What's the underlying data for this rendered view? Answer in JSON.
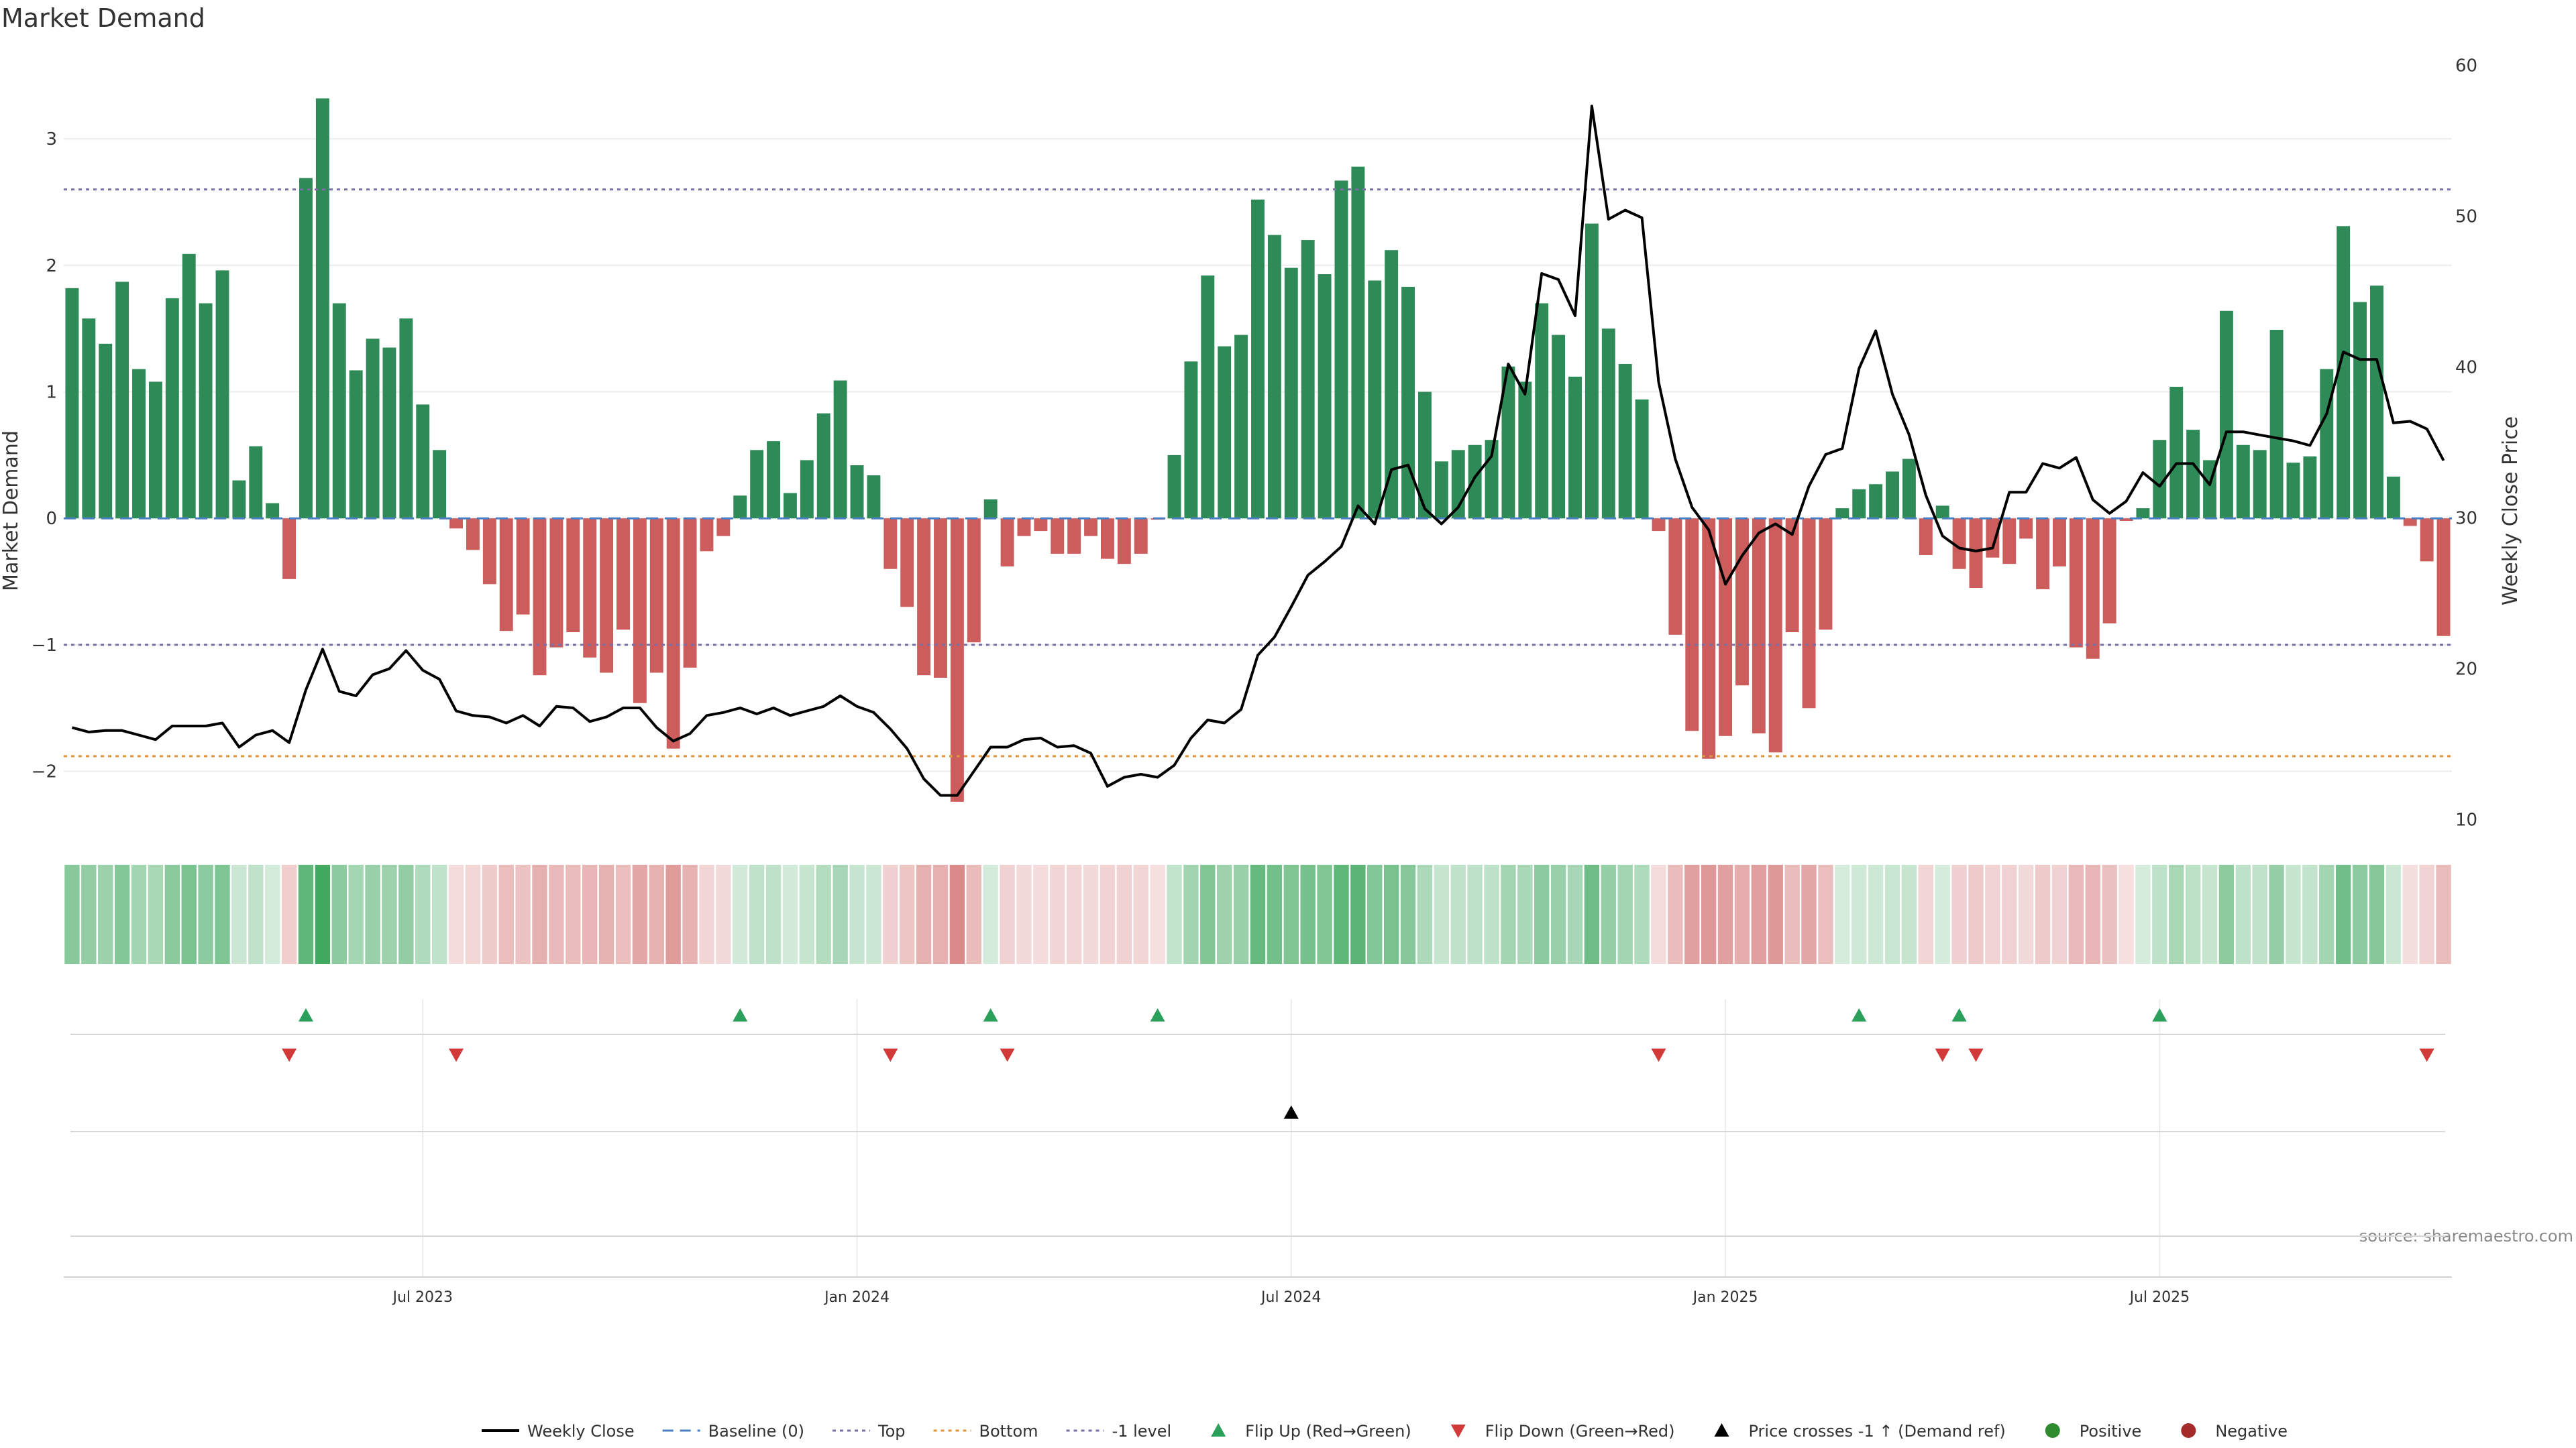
{
  "chart_data": {
    "type": "bar",
    "title": "Market Demand",
    "ylabel": "Market Demand",
    "ylabel_right": "Weekly Close Price",
    "ylim": [
      -2.5,
      3.7
    ],
    "ylim_right": [
      9,
      61
    ],
    "yticks": [
      -2,
      -1,
      0,
      1,
      2,
      3
    ],
    "yticks_labels": [
      "−2",
      "−1",
      "0",
      "1",
      "2",
      "3"
    ],
    "yticks_right": [
      10,
      20,
      30,
      40,
      50,
      60
    ],
    "reference_lines": {
      "top": 2.6,
      "minus_one": -1.0,
      "bottom": -1.88,
      "baseline": 0
    },
    "x_ticks": [
      {
        "label": "Jul 2023",
        "index": 21
      },
      {
        "label": "Jan 2024",
        "index": 47
      },
      {
        "label": "Jul 2024",
        "index": 73
      },
      {
        "label": "Jan 2025",
        "index": 99
      },
      {
        "label": "Jul 2025",
        "index": 125
      }
    ],
    "demand": [
      1.82,
      1.58,
      1.38,
      1.87,
      1.18,
      1.08,
      1.74,
      2.09,
      1.7,
      1.96,
      0.3,
      0.57,
      0.12,
      -0.48,
      2.69,
      3.32,
      1.7,
      1.17,
      1.42,
      1.35,
      1.58,
      0.9,
      0.54,
      -0.08,
      -0.25,
      -0.52,
      -0.89,
      -0.76,
      -1.24,
      -1.02,
      -0.9,
      -1.1,
      -1.22,
      -0.88,
      -1.46,
      -1.22,
      -1.82,
      -1.18,
      -0.26,
      -0.14,
      0.18,
      0.54,
      0.61,
      0.2,
      0.46,
      0.83,
      1.09,
      0.42,
      0.34,
      -0.4,
      -0.7,
      -1.24,
      -1.26,
      -2.24,
      -0.98,
      0.15,
      -0.38,
      -0.14,
      -0.1,
      -0.28,
      -0.28,
      -0.14,
      -0.32,
      -0.36,
      -0.28,
      -0.01,
      0.5,
      1.24,
      1.92,
      1.36,
      1.45,
      2.52,
      2.24,
      1.98,
      2.2,
      1.93,
      2.67,
      2.78,
      1.88,
      2.12,
      1.83,
      1.0,
      0.45,
      0.54,
      0.58,
      0.62,
      1.2,
      1.08,
      1.7,
      1.45,
      1.12,
      2.33,
      1.5,
      1.22,
      0.94,
      -0.1,
      -0.92,
      -1.68,
      -1.9,
      -1.72,
      -1.32,
      -1.7,
      -1.85,
      -0.9,
      -1.5,
      -0.88,
      0.08,
      0.23,
      0.27,
      0.37,
      0.47,
      -0.29,
      0.1,
      -0.4,
      -0.55,
      -0.31,
      -0.36,
      -0.16,
      -0.56,
      -0.38,
      -1.02,
      -1.11,
      -0.83,
      -0.02,
      0.08,
      0.62,
      1.04,
      0.7,
      0.46,
      1.64,
      0.58,
      0.54,
      1.49,
      0.44,
      0.49,
      1.18,
      2.31,
      1.71,
      1.84,
      0.33,
      -0.06,
      -0.34,
      -0.93
    ],
    "weekly_close": [
      16.1,
      15.8,
      15.9,
      15.9,
      15.6,
      15.3,
      16.2,
      16.2,
      16.2,
      16.4,
      14.8,
      15.6,
      15.9,
      15.1,
      18.6,
      21.3,
      18.5,
      18.2,
      19.6,
      20.0,
      21.2,
      19.9,
      19.3,
      17.2,
      16.9,
      16.8,
      16.4,
      16.9,
      16.2,
      17.5,
      17.4,
      16.5,
      16.8,
      17.4,
      17.4,
      16.1,
      15.2,
      15.7,
      16.9,
      17.1,
      17.4,
      17.0,
      17.4,
      16.9,
      17.2,
      17.5,
      18.2,
      17.5,
      17.1,
      16.0,
      14.7,
      12.7,
      11.6,
      11.6,
      13.2,
      14.8,
      14.8,
      15.3,
      15.4,
      14.8,
      14.9,
      14.4,
      12.2,
      12.8,
      13.0,
      12.8,
      13.6,
      15.4,
      16.6,
      16.4,
      17.3,
      20.9,
      22.1,
      24.1,
      26.2,
      27.1,
      28.1,
      30.8,
      29.6,
      33.2,
      33.5,
      30.6,
      29.6,
      30.7,
      32.7,
      34.1,
      40.2,
      38.2,
      46.2,
      45.8,
      43.4,
      57.3,
      49.8,
      50.4,
      49.9,
      39.0,
      33.9,
      30.7,
      29.2,
      25.6,
      27.5,
      29.0,
      29.6,
      28.9,
      32.1,
      34.2,
      34.6,
      39.9,
      42.4,
      38.2,
      35.5,
      31.5,
      28.8,
      28.0,
      27.8,
      28.0,
      31.7,
      31.7,
      33.6,
      33.3,
      34.0,
      31.2,
      30.3,
      31.1,
      33.0,
      32.1,
      33.6,
      33.6,
      32.2,
      35.7,
      35.7,
      35.5,
      35.3,
      35.1,
      34.8,
      36.9,
      41.0,
      40.5,
      40.5,
      36.3,
      36.4,
      35.9,
      33.8
    ],
    "flip_up_indices": [
      14,
      40,
      55,
      65,
      107,
      113,
      125
    ],
    "flip_down_indices": [
      13,
      23,
      49,
      56,
      95,
      112,
      114,
      141
    ],
    "price_cross_indices": [
      73
    ],
    "legend": [
      {
        "label": "Weekly Close",
        "symbol": "line"
      },
      {
        "label": "Baseline (0)",
        "symbol": "dash"
      },
      {
        "label": "Top",
        "symbol": "dot"
      },
      {
        "label": "Bottom",
        "symbol": "dot-orange"
      },
      {
        "label": "-1 level",
        "symbol": "dot"
      },
      {
        "label": "Flip Up (Red→Green)",
        "symbol": "tri-up"
      },
      {
        "label": "Flip Down (Green→Red)",
        "symbol": "tri-down"
      },
      {
        "label": "Price crosses -1 ↑ (Demand ref)",
        "symbol": "tri-black"
      },
      {
        "label": "Positive",
        "symbol": "circle-green"
      },
      {
        "label": "Negative",
        "symbol": "circle-red"
      }
    ]
  },
  "source_note": "source: sharemaestro.com",
  "colors": {
    "positive": "#2e8b57",
    "negative": "#cd5c5c",
    "price_line": "#000000",
    "top_line": "#7b6fa6",
    "bottom_line": "#e0953a",
    "baseline": "#4a7fc1",
    "flip_up": "#2aa05a",
    "flip_down": "#d23a3a",
    "legend_positive": "#2e8b2e",
    "legend_negative": "#a52a2a"
  }
}
